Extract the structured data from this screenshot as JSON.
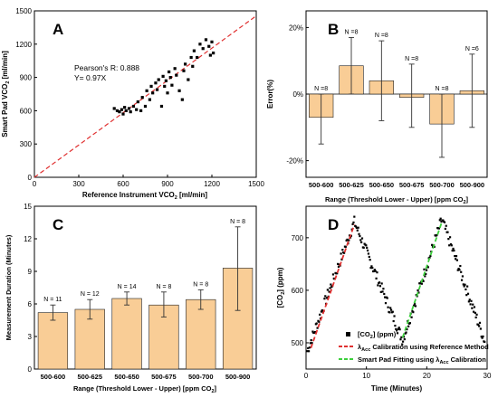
{
  "chart_data": [
    {
      "panel": "A",
      "type": "scatter",
      "xlabel": "Reference Instrument VCO₂ [ml/min]",
      "ylabel": "Smart Pad VCO₂ [ml/min]",
      "xlim": [
        0,
        1500
      ],
      "ylim": [
        0,
        1500
      ],
      "xticks": [
        "0",
        "300",
        "600",
        "900",
        "1200",
        "1500"
      ],
      "yticks": [
        "0",
        "300",
        "600",
        "900",
        "1200",
        "1500"
      ],
      "annotations": [
        "Pearson's R: 0.888",
        "Y= 0.97X"
      ],
      "fit_slope": 0.97,
      "line_color": "#e03030",
      "points": [
        [
          540,
          620
        ],
        [
          560,
          600
        ],
        [
          575,
          590
        ],
        [
          590,
          610
        ],
        [
          600,
          570
        ],
        [
          610,
          630
        ],
        [
          620,
          600
        ],
        [
          640,
          620
        ],
        [
          650,
          590
        ],
        [
          670,
          640
        ],
        [
          690,
          610
        ],
        [
          700,
          680
        ],
        [
          720,
          600
        ],
        [
          730,
          720
        ],
        [
          750,
          640
        ],
        [
          760,
          780
        ],
        [
          780,
          700
        ],
        [
          790,
          820
        ],
        [
          800,
          760
        ],
        [
          820,
          850
        ],
        [
          830,
          790
        ],
        [
          840,
          880
        ],
        [
          860,
          640
        ],
        [
          870,
          910
        ],
        [
          880,
          820
        ],
        [
          890,
          870
        ],
        [
          900,
          760
        ],
        [
          910,
          950
        ],
        [
          920,
          900
        ],
        [
          930,
          830
        ],
        [
          950,
          980
        ],
        [
          960,
          920
        ],
        [
          980,
          780
        ],
        [
          1000,
          700
        ],
        [
          1010,
          960
        ],
        [
          1020,
          1020
        ],
        [
          1040,
          880
        ],
        [
          1060,
          1080
        ],
        [
          1070,
          1000
        ],
        [
          1080,
          1140
        ],
        [
          1100,
          1080
        ],
        [
          1120,
          1200
        ],
        [
          1140,
          1160
        ],
        [
          1160,
          1240
        ],
        [
          1180,
          1180
        ],
        [
          1190,
          1100
        ],
        [
          1200,
          1220
        ],
        [
          1210,
          1120
        ]
      ]
    },
    {
      "panel": "B",
      "type": "bar",
      "xlabel": "Range (Threshold Lower - Upper) [ppm CO₂]",
      "ylabel": "Error(%)",
      "categories": [
        "500-600",
        "500-625",
        "500-650",
        "500-675",
        "500-700",
        "500-900"
      ],
      "values": [
        -7,
        8.5,
        4,
        -1,
        -9,
        1
      ],
      "err_upper": [
        0,
        17,
        16,
        9,
        0,
        12
      ],
      "err_lower": [
        -15,
        0,
        -8,
        -10,
        -19,
        -10
      ],
      "n_labels": [
        "N =8",
        "N =8",
        "N =8",
        "N =8",
        "N =8",
        "N =6"
      ],
      "ylim": [
        -25,
        25
      ],
      "yticks": [
        "-20%",
        "0%",
        "20%"
      ],
      "bar_color": "#f9cd96"
    },
    {
      "panel": "C",
      "type": "bar",
      "xlabel": "Range (Threshold Lower - Upper) [ppm CO₂]",
      "ylabel": "Measurement Duration (Minutes)",
      "categories": [
        "500-600",
        "500-625",
        "500-650",
        "500-675",
        "500-700",
        "500-900"
      ],
      "values": [
        5.2,
        5.5,
        6.5,
        5.9,
        6.4,
        9.3
      ],
      "err_upper": [
        5.9,
        6.4,
        7.1,
        7.1,
        7.3,
        13.1
      ],
      "err_lower": [
        4.5,
        4.6,
        5.9,
        4.8,
        5.5,
        5.4
      ],
      "n_labels": [
        "N = 11",
        "N = 12",
        "N = 14",
        "N = 8",
        "N = 8",
        "N = 8"
      ],
      "ylim": [
        0,
        15
      ],
      "yticks": [
        "0",
        "3",
        "6",
        "9",
        "12",
        "15"
      ],
      "bar_color": "#f9cd96"
    },
    {
      "panel": "D",
      "type": "scatter",
      "xlabel": "Time (Minutes)",
      "ylabel": "[CO₂] (ppm)",
      "xlim": [
        0,
        30
      ],
      "ylim": [
        450,
        760
      ],
      "xticks": [
        "0",
        "10",
        "20",
        "30"
      ],
      "yticks": [
        "500",
        "600",
        "700"
      ],
      "series": [
        {
          "name": "[CO₂] (ppm)",
          "kind": "points",
          "color": "#000000"
        },
        {
          "name": "λAcc Calibration using Reference Method",
          "kind": "dashed",
          "color": "#e03030",
          "segment": [
            [
              0.8,
              490
            ],
            [
              8,
              725
            ]
          ]
        },
        {
          "name": "Smart Pad Fitting using λAcc Calibration",
          "kind": "dashed",
          "color": "#3ccf3c",
          "segment": [
            [
              16,
              510
            ],
            [
              22.5,
              730
            ]
          ]
        }
      ]
    }
  ],
  "panels": {
    "a": "A",
    "b": "B",
    "c": "C",
    "d": "D"
  },
  "text": {
    "pearson": "Pearson's R: 0.888",
    "fit": "Y= 0.97X",
    "a_xlabel_pre": "Reference Instrument VCO",
    "a_xlabel_sub": "2",
    "a_xlabel_post": " [ml/min]",
    "a_ylabel_pre": "Smart Pad VCO",
    "a_ylabel_sub": "2",
    "a_ylabel_post": " [ml/min]",
    "range_label": "Range (Threshold Lower - Upper) [ppm CO",
    "range_sub": "2",
    "range_post": "]",
    "b_ylabel": "Error(%)",
    "c_ylabel": "Measurement Duration (Minutes)",
    "d_ylabel_pre": "[CO",
    "d_ylabel_sub": "2",
    "d_ylabel_post": "] (ppm)",
    "d_xlabel": "Time (Minutes)",
    "leg1_pre": "[CO",
    "leg1_sub": "2",
    "leg1_post": "] (ppm)",
    "leg2_lambda": "λ",
    "leg2_sub": "Acc",
    "leg2_post": " Calibration using Reference Method",
    "leg3_pre": "Smart Pad Fitting using ",
    "leg3_lambda": "λ",
    "leg3_sub": "Acc",
    "leg3_post": " Calibration"
  }
}
